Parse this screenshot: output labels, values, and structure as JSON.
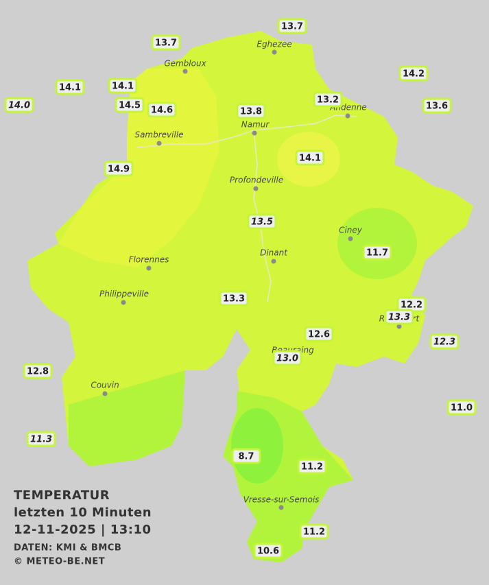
{
  "title": {
    "lines": [
      "TEMPERATUR",
      "letzten 10 Minuten",
      "12-11-2025  |  13:10"
    ],
    "credits": [
      "DATEN: KMI & BMCB",
      "© METEO-BE.NET"
    ]
  },
  "towns": [
    "Eghezee",
    "Gembloux",
    "Andenne",
    "Namur",
    "Sambreville",
    "Profondeville",
    "Ciney",
    "Florennes",
    "Dinant",
    "Philippeville",
    "Rochefort",
    "Beauraing",
    "Couvin",
    "Vresse-sur-Semois"
  ],
  "stations": [
    {
      "label": "13.7"
    },
    {
      "label": "13.7"
    },
    {
      "label": "14.2"
    },
    {
      "label": "14.1"
    },
    {
      "label": "14.1"
    },
    {
      "label": "14.0",
      "italic": true
    },
    {
      "label": "14.5"
    },
    {
      "label": "14.6"
    },
    {
      "label": "13.8"
    },
    {
      "label": "13.2"
    },
    {
      "label": "13.6"
    },
    {
      "label": "14.9"
    },
    {
      "label": "14.1"
    },
    {
      "label": "13.5",
      "italic": true
    },
    {
      "label": "11.7"
    },
    {
      "label": "13.3"
    },
    {
      "label": "12.2"
    },
    {
      "label": "13.3",
      "italic": true
    },
    {
      "label": "12.6"
    },
    {
      "label": "12.3",
      "italic": true
    },
    {
      "label": "13.0",
      "italic": true
    },
    {
      "label": "12.8"
    },
    {
      "label": "11.0"
    },
    {
      "label": "11.3",
      "italic": true
    },
    {
      "label": "8.7"
    },
    {
      "label": "11.2"
    },
    {
      "label": "11.2"
    },
    {
      "label": "10.6"
    }
  ]
}
